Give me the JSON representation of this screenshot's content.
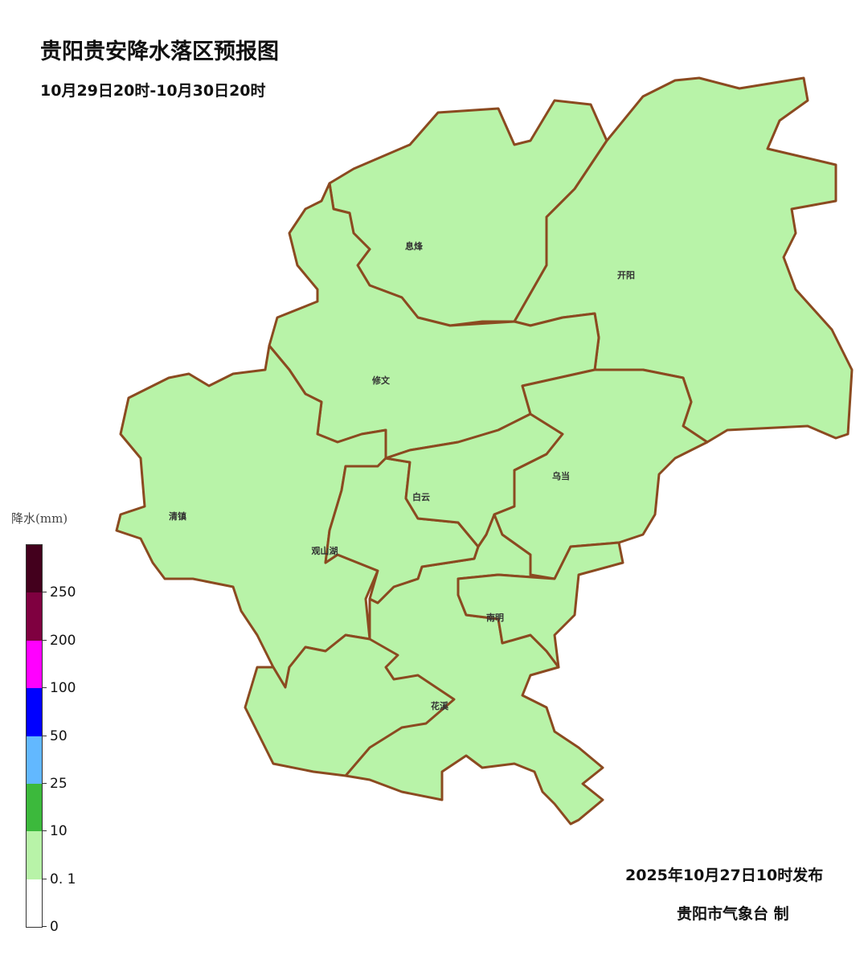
{
  "title": "贵阳贵安降水落区预报图",
  "subtitle": "10月29日20时-10月30日20时",
  "districts": [
    {
      "name": "息烽",
      "rain_class": "0.1-10"
    },
    {
      "name": "开阳",
      "rain_class": "0.1-10"
    },
    {
      "name": "修文",
      "rain_class": "0.1-10"
    },
    {
      "name": "乌当",
      "rain_class": "0.1-10"
    },
    {
      "name": "白云",
      "rain_class": "0.1-10"
    },
    {
      "name": "清镇",
      "rain_class": "0.1-10"
    },
    {
      "name": "观山湖",
      "rain_class": "0.1-10"
    },
    {
      "name": "南明",
      "rain_class": "0.1-10"
    },
    {
      "name": "花溪",
      "rain_class": "0.1-10"
    }
  ],
  "legend": {
    "title": "降水(mm)",
    "ticks": [
      "0",
      "0. 1",
      "10",
      "25",
      "50",
      "100",
      "200",
      "250"
    ],
    "colors": [
      "#ffffff",
      "#b8f3a8",
      "#3cb93c",
      "#62b8ff",
      "#0000ff",
      "#ff00ff",
      "#7f0040",
      "#43001d"
    ]
  },
  "colors": {
    "fill": "#b8f3a8",
    "border": "#8b4a20"
  },
  "footer": {
    "issued": "2025年10月27日10时发布",
    "maker": "贵阳市气象台  制"
  }
}
